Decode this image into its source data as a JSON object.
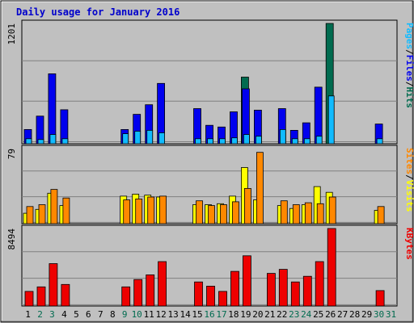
{
  "chart_data": {
    "type": "bar",
    "title": "Daily usage for January 2016",
    "categories": [
      "1",
      "2",
      "3",
      "4",
      "5",
      "6",
      "7",
      "8",
      "9",
      "10",
      "11",
      "12",
      "13",
      "14",
      "15",
      "16",
      "17",
      "18",
      "19",
      "20",
      "21",
      "22",
      "23",
      "24",
      "25",
      "26",
      "27",
      "28",
      "29",
      "30",
      "31"
    ],
    "weekend_days": [
      "2",
      "3",
      "9",
      "10",
      "16",
      "17",
      "23",
      "24",
      "30",
      "31"
    ],
    "panels": [
      {
        "name": "pages-files-hits",
        "max_label": "1201",
        "ylim": [
          0,
          1201
        ],
        "legend": [
          "Pages",
          "/",
          "Files",
          "/",
          "Hits"
        ],
        "series": [
          {
            "name": "Hits",
            "color": "#006b4f",
            "values": [
              0,
              0,
              0,
              0,
              0,
              0,
              0,
              0,
              0,
              0,
              0,
              0,
              0,
              0,
              0,
              0,
              0,
              0,
              665,
              0,
              0,
              0,
              0,
              0,
              0,
              1201,
              0,
              0,
              0,
              0,
              0
            ]
          },
          {
            "name": "Files",
            "color": "#0000ee",
            "values": [
              142,
              276,
              698,
              339,
              0,
              0,
              0,
              0,
              142,
              293,
              389,
              602,
              0,
              0,
              351,
              184,
              167,
              318,
              548,
              335,
              0,
              351,
              134,
              209,
              565,
              0,
              0,
              0,
              0,
              197,
              0
            ]
          },
          {
            "name": "Pages",
            "color": "#11bbff",
            "values": [
              50,
              42,
              92,
              50,
              0,
              0,
              0,
              0,
              100,
              125,
              134,
              109,
              0,
              0,
              50,
              50,
              50,
              59,
              92,
              75,
              0,
              142,
              50,
              50,
              75,
              477,
              0,
              0,
              0,
              50,
              0
            ]
          }
        ]
      },
      {
        "name": "visits-sites",
        "max_label": "79",
        "ylim": [
          0,
          79
        ],
        "legend": [
          "Sites",
          "/",
          "Visits"
        ],
        "series": [
          {
            "name": "Visits",
            "color": "#ffff00",
            "values": [
              11,
              15,
              32,
              19,
              0,
              0,
              0,
              0,
              29,
              31,
              30,
              28,
              0,
              0,
              20,
              20,
              21,
              29,
              59,
              25,
              0,
              19,
              16,
              20,
              39,
              33,
              0,
              0,
              0,
              14,
              0
            ]
          },
          {
            "name": "Sites",
            "color": "#ff8800",
            "values": [
              18,
              20,
              36,
              27,
              0,
              0,
              0,
              0,
              25,
              26,
              28,
              29,
              0,
              0,
              24,
              19,
              20,
              23,
              37,
              75,
              0,
              24,
              20,
              22,
              21,
              28,
              0,
              0,
              0,
              18,
              0
            ]
          }
        ]
      },
      {
        "name": "kbytes",
        "max_label": "8494",
        "ylim": [
          0,
          8494
        ],
        "legend": [
          "KBytes"
        ],
        "series": [
          {
            "name": "KBytes",
            "color": "#ee0000",
            "values": [
              1604,
              2095,
              4643,
              2365,
              0,
              0,
              0,
              0,
              2095,
              2904,
              3417,
              4865,
              0,
              0,
              2635,
              2179,
              1604,
              3795,
              5499,
              0,
              3578,
              4016,
              2635,
              3256,
              4865,
              8494,
              0,
              0,
              0,
              1689,
              0
            ]
          }
        ]
      }
    ],
    "bar_colors": {
      "outline": "#000000",
      "weekday_label": "#000000",
      "weekend_label": "#006b4f",
      "title": "#0000cc"
    }
  }
}
